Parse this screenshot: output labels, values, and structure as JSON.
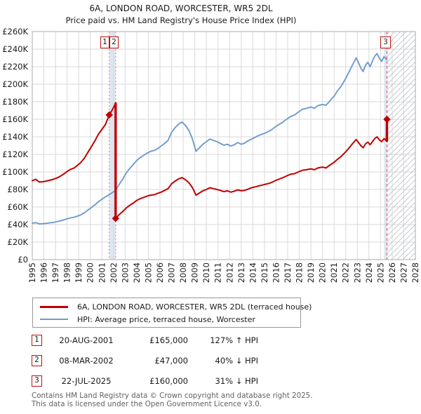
{
  "title": "6A, LONDON ROAD, WORCESTER, WR5 2DL",
  "subtitle": "Price paid vs. HM Land Registry's House Price Index (HPI)",
  "colors": {
    "price_line": "#c00000",
    "hpi_line": "#6f9bcb",
    "grid": "#d9d9d9",
    "plot_border": "#ababab",
    "shaded_band": "#dce7f3",
    "event_line_dotted": "#ef8585",
    "event_line_dashed": "#e96a6a",
    "hatch": "#c6c8ce",
    "marker_border": "#bb1111",
    "footer_text": "#616161"
  },
  "chart_data": {
    "type": "line",
    "title": "6A, LONDON ROAD, WORCESTER, WR5 2DL",
    "subtitle": "Price paid vs. HM Land Registry's House Price Index (HPI)",
    "x_range": [
      1995,
      2028
    ],
    "y_range": [
      0,
      260000
    ],
    "grid": true,
    "x_ticks": [
      "1995",
      "1996",
      "1997",
      "1998",
      "1999",
      "2000",
      "2001",
      "2002",
      "2003",
      "2004",
      "2005",
      "2006",
      "2007",
      "2008",
      "2009",
      "2010",
      "2011",
      "2012",
      "2013",
      "2014",
      "2015",
      "2016",
      "2017",
      "2018",
      "2019",
      "2020",
      "2021",
      "2022",
      "2023",
      "2024",
      "2025",
      "2026",
      "2027",
      "2028"
    ],
    "y_ticks": [
      {
        "value": 0,
        "label": "£0"
      },
      {
        "value": 20000,
        "label": "£20K"
      },
      {
        "value": 40000,
        "label": "£40K"
      },
      {
        "value": 60000,
        "label": "£60K"
      },
      {
        "value": 80000,
        "label": "£80K"
      },
      {
        "value": 100000,
        "label": "£100K"
      },
      {
        "value": 120000,
        "label": "£120K"
      },
      {
        "value": 140000,
        "label": "£140K"
      },
      {
        "value": 160000,
        "label": "£160K"
      },
      {
        "value": 180000,
        "label": "£180K"
      },
      {
        "value": 200000,
        "label": "£200K"
      },
      {
        "value": 220000,
        "label": "£220K"
      },
      {
        "value": 240000,
        "label": "£240K"
      },
      {
        "value": 260000,
        "label": "£260K"
      }
    ],
    "series": [
      {
        "name": "6A, LONDON ROAD, WORCESTER, WR5 2DL (terraced house)",
        "color": "#c00000",
        "width": 2,
        "points": [
          [
            1995.0,
            90000
          ],
          [
            1995.3,
            91500
          ],
          [
            1995.6,
            88500
          ],
          [
            1995.9,
            88800
          ],
          [
            1996.2,
            89500
          ],
          [
            1996.5,
            90500
          ],
          [
            1996.8,
            91500
          ],
          [
            1997.1,
            93000
          ],
          [
            1997.4,
            95000
          ],
          [
            1997.7,
            97500
          ],
          [
            1998.0,
            100500
          ],
          [
            1998.3,
            103000
          ],
          [
            1998.6,
            104500
          ],
          [
            1998.9,
            107500
          ],
          [
            1999.2,
            111000
          ],
          [
            1999.5,
            116000
          ],
          [
            1999.8,
            122500
          ],
          [
            2000.1,
            129000
          ],
          [
            2000.4,
            135500
          ],
          [
            2000.7,
            143000
          ],
          [
            2001.0,
            148500
          ],
          [
            2001.3,
            154000
          ],
          [
            2001.63,
            165000
          ],
          [
            2001.9,
            171000
          ],
          [
            2002.17,
            178000
          ],
          [
            2002.18,
            47000
          ],
          [
            2002.5,
            51500
          ],
          [
            2002.8,
            55000
          ],
          [
            2003.1,
            59000
          ],
          [
            2003.4,
            62000
          ],
          [
            2003.7,
            64500
          ],
          [
            2004.0,
            67500
          ],
          [
            2004.3,
            69500
          ],
          [
            2004.6,
            71000
          ],
          [
            2004.9,
            72500
          ],
          [
            2005.2,
            73500
          ],
          [
            2005.5,
            74000
          ],
          [
            2005.8,
            75500
          ],
          [
            2006.1,
            77000
          ],
          [
            2006.4,
            79000
          ],
          [
            2006.7,
            81000
          ],
          [
            2007.0,
            86500
          ],
          [
            2007.3,
            89500
          ],
          [
            2007.6,
            92000
          ],
          [
            2007.9,
            93500
          ],
          [
            2008.2,
            91000
          ],
          [
            2008.5,
            87500
          ],
          [
            2008.8,
            82000
          ],
          [
            2009.1,
            73500
          ],
          [
            2009.4,
            76000
          ],
          [
            2009.7,
            78500
          ],
          [
            2010.0,
            80000
          ],
          [
            2010.3,
            82000
          ],
          [
            2010.6,
            81000
          ],
          [
            2010.9,
            80000
          ],
          [
            2011.2,
            79000
          ],
          [
            2011.5,
            77500
          ],
          [
            2011.8,
            78500
          ],
          [
            2012.1,
            77000
          ],
          [
            2012.4,
            78000
          ],
          [
            2012.7,
            79500
          ],
          [
            2013.0,
            78500
          ],
          [
            2013.3,
            79000
          ],
          [
            2013.6,
            80500
          ],
          [
            2013.9,
            82000
          ],
          [
            2014.2,
            83000
          ],
          [
            2014.5,
            84000
          ],
          [
            2014.8,
            85000
          ],
          [
            2015.1,
            86000
          ],
          [
            2015.4,
            87000
          ],
          [
            2015.7,
            88500
          ],
          [
            2016.0,
            90500
          ],
          [
            2016.3,
            92000
          ],
          [
            2016.6,
            93500
          ],
          [
            2017.0,
            96000
          ],
          [
            2017.3,
            97500
          ],
          [
            2017.6,
            98000
          ],
          [
            2018.0,
            100500
          ],
          [
            2018.3,
            102000
          ],
          [
            2018.6,
            102500
          ],
          [
            2019.0,
            103500
          ],
          [
            2019.3,
            102500
          ],
          [
            2019.6,
            104500
          ],
          [
            2020.0,
            105500
          ],
          [
            2020.3,
            104500
          ],
          [
            2020.6,
            107500
          ],
          [
            2021.0,
            111000
          ],
          [
            2021.3,
            114500
          ],
          [
            2021.6,
            117500
          ],
          [
            2022.0,
            123000
          ],
          [
            2022.3,
            127500
          ],
          [
            2022.6,
            132500
          ],
          [
            2022.9,
            137000
          ],
          [
            2023.1,
            133500
          ],
          [
            2023.3,
            130000
          ],
          [
            2023.5,
            127500
          ],
          [
            2023.7,
            132000
          ],
          [
            2023.9,
            134000
          ],
          [
            2024.1,
            131000
          ],
          [
            2024.3,
            134500
          ],
          [
            2024.5,
            138000
          ],
          [
            2024.7,
            140000
          ],
          [
            2024.9,
            136500
          ],
          [
            2025.1,
            134500
          ],
          [
            2025.3,
            138000
          ],
          [
            2025.5,
            135500
          ],
          [
            2025.55,
            160000
          ]
        ]
      },
      {
        "name": "HPI: Average price, terraced house, Worcester",
        "color": "#6f9bcb",
        "width": 1.9,
        "points": [
          [
            1995.0,
            41500
          ],
          [
            1995.3,
            42200
          ],
          [
            1995.6,
            40800
          ],
          [
            1995.9,
            41000
          ],
          [
            1996.2,
            41400
          ],
          [
            1996.5,
            41900
          ],
          [
            1996.8,
            42400
          ],
          [
            1997.1,
            43200
          ],
          [
            1997.4,
            44200
          ],
          [
            1997.7,
            45300
          ],
          [
            1998.0,
            46600
          ],
          [
            1998.3,
            47600
          ],
          [
            1998.6,
            48300
          ],
          [
            1998.9,
            49600
          ],
          [
            1999.2,
            51200
          ],
          [
            1999.5,
            53500
          ],
          [
            1999.8,
            56500
          ],
          [
            2000.1,
            59500
          ],
          [
            2000.4,
            62500
          ],
          [
            2000.7,
            66000
          ],
          [
            2001.0,
            69000
          ],
          [
            2001.3,
            71500
          ],
          [
            2001.63,
            74000
          ],
          [
            2001.9,
            76500
          ],
          [
            2002.18,
            79000
          ],
          [
            2002.5,
            86000
          ],
          [
            2002.8,
            92000
          ],
          [
            2003.1,
            99000
          ],
          [
            2003.4,
            104000
          ],
          [
            2003.7,
            108500
          ],
          [
            2004.0,
            113000
          ],
          [
            2004.3,
            116500
          ],
          [
            2004.6,
            119000
          ],
          [
            2004.9,
            121500
          ],
          [
            2005.2,
            123500
          ],
          [
            2005.5,
            124500
          ],
          [
            2005.8,
            126500
          ],
          [
            2006.1,
            129500
          ],
          [
            2006.4,
            132500
          ],
          [
            2006.7,
            136000
          ],
          [
            2007.0,
            145000
          ],
          [
            2007.3,
            150500
          ],
          [
            2007.6,
            154500
          ],
          [
            2007.9,
            157000
          ],
          [
            2008.2,
            153000
          ],
          [
            2008.5,
            147000
          ],
          [
            2008.8,
            137500
          ],
          [
            2009.1,
            123500
          ],
          [
            2009.4,
            127500
          ],
          [
            2009.7,
            131500
          ],
          [
            2010.0,
            134500
          ],
          [
            2010.3,
            137500
          ],
          [
            2010.6,
            136000
          ],
          [
            2010.9,
            134500
          ],
          [
            2011.2,
            132500
          ],
          [
            2011.5,
            130500
          ],
          [
            2011.8,
            131500
          ],
          [
            2012.1,
            129500
          ],
          [
            2012.4,
            131000
          ],
          [
            2012.7,
            133500
          ],
          [
            2013.0,
            131500
          ],
          [
            2013.3,
            133000
          ],
          [
            2013.6,
            135500
          ],
          [
            2013.9,
            137500
          ],
          [
            2014.2,
            139500
          ],
          [
            2014.5,
            141500
          ],
          [
            2014.8,
            143000
          ],
          [
            2015.1,
            144500
          ],
          [
            2015.4,
            146500
          ],
          [
            2015.7,
            149000
          ],
          [
            2016.0,
            152000
          ],
          [
            2016.3,
            154500
          ],
          [
            2016.6,
            157000
          ],
          [
            2017.0,
            161000
          ],
          [
            2017.3,
            163500
          ],
          [
            2017.6,
            165000
          ],
          [
            2018.0,
            169000
          ],
          [
            2018.3,
            171500
          ],
          [
            2018.6,
            172500
          ],
          [
            2019.0,
            174000
          ],
          [
            2019.3,
            172500
          ],
          [
            2019.6,
            175500
          ],
          [
            2020.0,
            177000
          ],
          [
            2020.3,
            176000
          ],
          [
            2020.6,
            180500
          ],
          [
            2021.0,
            186500
          ],
          [
            2021.3,
            192500
          ],
          [
            2021.6,
            197500
          ],
          [
            2022.0,
            206500
          ],
          [
            2022.3,
            214500
          ],
          [
            2022.6,
            222500
          ],
          [
            2022.9,
            230000
          ],
          [
            2023.1,
            224500
          ],
          [
            2023.3,
            218500
          ],
          [
            2023.5,
            214500
          ],
          [
            2023.7,
            221500
          ],
          [
            2023.9,
            225000
          ],
          [
            2024.1,
            220000
          ],
          [
            2024.3,
            226500
          ],
          [
            2024.5,
            232000
          ],
          [
            2024.7,
            235000
          ],
          [
            2024.9,
            229500
          ],
          [
            2025.1,
            226000
          ],
          [
            2025.3,
            231500
          ],
          [
            2025.55,
            228000
          ]
        ]
      }
    ],
    "sales": [
      {
        "n": "1",
        "date": "20-AUG-2001",
        "year": 2001.63,
        "price": 165000,
        "hpi_relation": "127% ↑ HPI"
      },
      {
        "n": "2",
        "date": "08-MAR-2002",
        "year": 2002.18,
        "price": 47000,
        "hpi_relation": "40% ↓ HPI"
      },
      {
        "n": "3",
        "date": "22-JUL-2025",
        "year": 2025.55,
        "price": 160000,
        "hpi_relation": "31% ↓ HPI"
      }
    ],
    "emphasis_segments": [
      {
        "year": 2002.18,
        "from": 178000,
        "to": 47000
      },
      {
        "year": 2025.55,
        "from": 135500,
        "to": 160000
      }
    ],
    "shaded_bands": [
      [
        2001.63,
        2002.18
      ],
      [
        2025.3,
        2025.55
      ]
    ],
    "future_hatch_start": 2025.55,
    "legend_position": "below"
  },
  "legend": {
    "items": [
      {
        "label": "6A, LONDON ROAD, WORCESTER, WR5 2DL (terraced house)",
        "color": "#c00000"
      },
      {
        "label": "HPI: Average price, terraced house, Worcester",
        "color": "#6f9bcb"
      }
    ]
  },
  "table": {
    "rows": [
      {
        "num": "1",
        "date": "20-AUG-2001",
        "price": "£165,000",
        "pct": "127% ↑ HPI"
      },
      {
        "num": "2",
        "date": "08-MAR-2002",
        "price": "£47,000",
        "pct": "40% ↓ HPI"
      },
      {
        "num": "3",
        "date": "22-JUL-2025",
        "price": "£160,000",
        "pct": "31% ↓ HPI"
      }
    ]
  },
  "footer": {
    "line1": "Contains HM Land Registry data © Crown copyright and database right 2025.",
    "line2": "This data is licensed under the Open Government Licence v3.0."
  }
}
